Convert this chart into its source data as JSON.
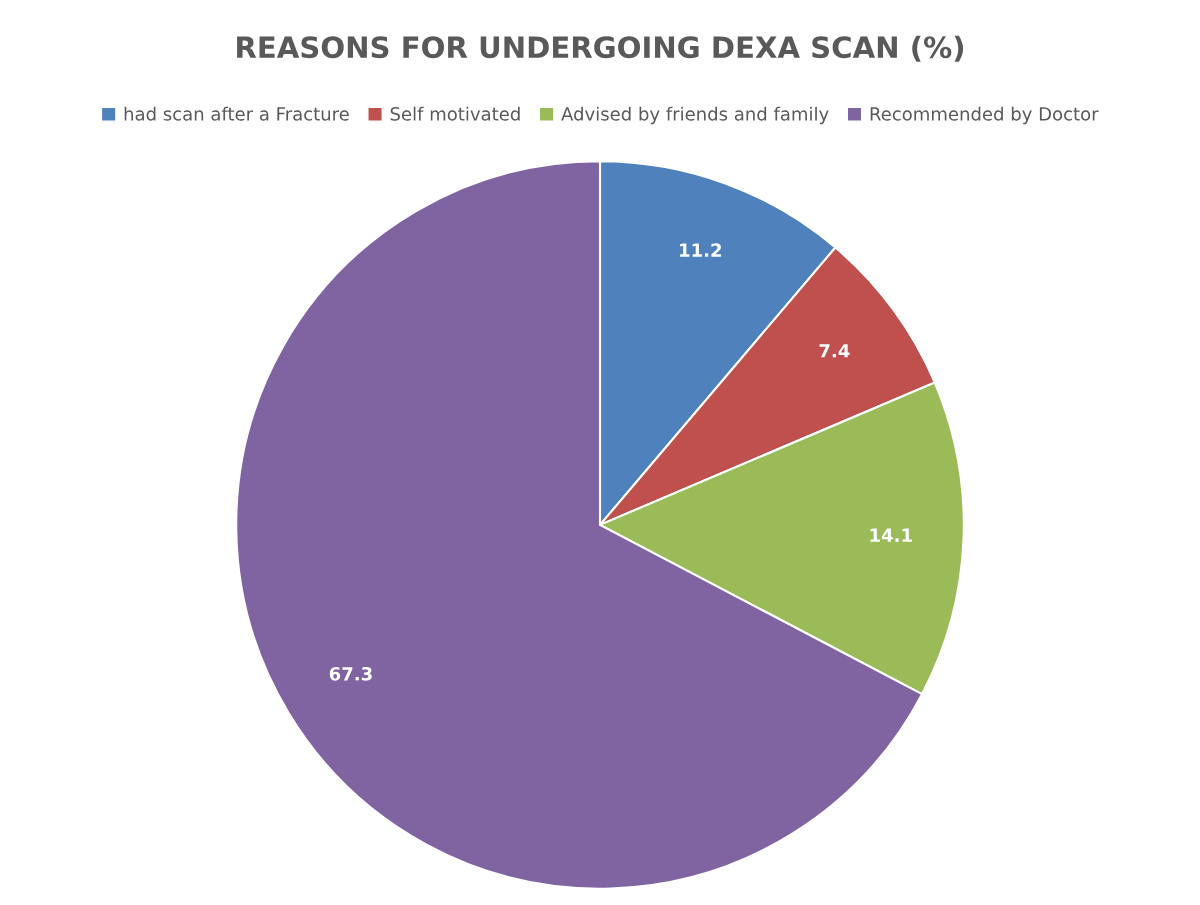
{
  "chart_data": {
    "type": "pie",
    "title": "REASONS FOR UNDERGOING DEXA SCAN (%)",
    "categories": [
      "had scan after a Fracture",
      "Self motivated",
      "Advised by friends and family",
      "Recommended by Doctor"
    ],
    "values": [
      11.2,
      7.4,
      14.1,
      67.3
    ],
    "colors": [
      "#4f81bd",
      "#c0504d",
      "#9bbb59",
      "#8064a2"
    ],
    "data_labels": true,
    "legend": "top"
  }
}
